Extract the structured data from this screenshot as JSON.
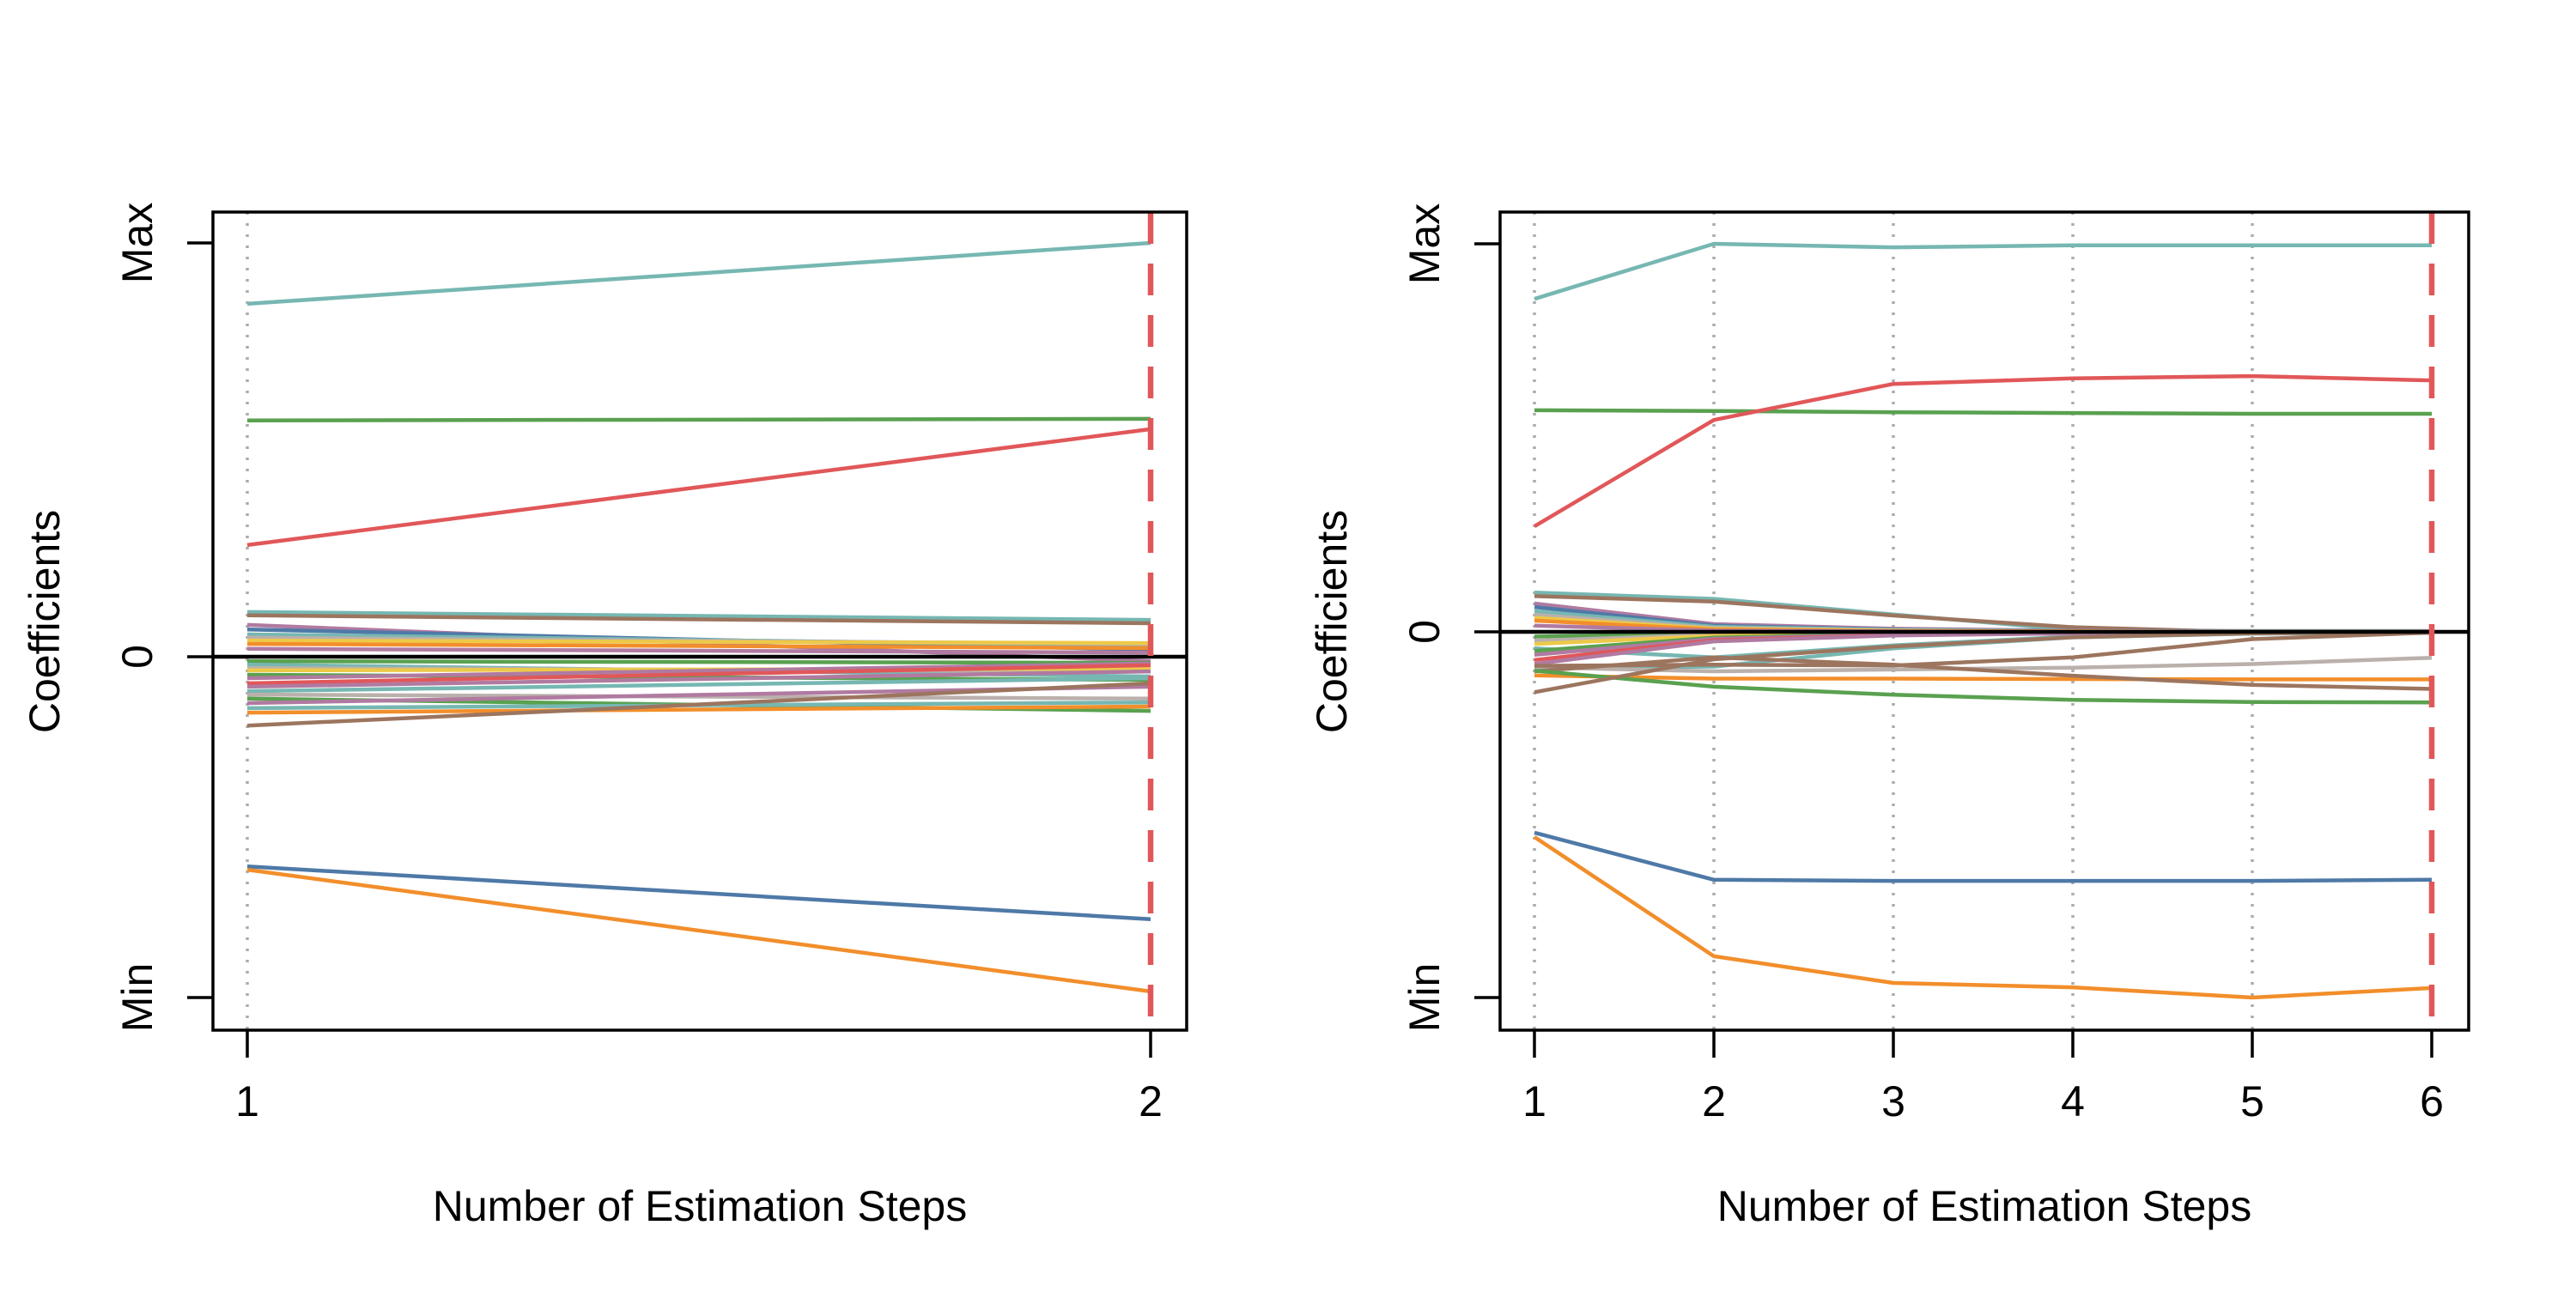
{
  "figure": {
    "ylabel": "Coefficients",
    "xlabel": "Number of Estimation Steps",
    "background": "#ffffff",
    "axis_color": "#000000",
    "zero_line_color": "#000000",
    "grid_color": "#ababab",
    "cutoff_color": "#e15759",
    "palette": {
      "blue": "#4E79A7",
      "orange": "#F28E2B",
      "red": "#E15759",
      "teal": "#76B7B2",
      "green": "#59A14F",
      "yellow": "#EDC949",
      "purple": "#B07AA1",
      "brown": "#9C755F",
      "gray": "#BAB0AC"
    }
  },
  "chart_data": [
    {
      "type": "line",
      "title": "",
      "xlabel": "Number of Estimation Steps",
      "ylabel": "Coefficients",
      "x": [
        1,
        2
      ],
      "x_tick_labels": [
        "1",
        "2"
      ],
      "y_tick_labels": [
        "Max",
        "0",
        "Min"
      ],
      "ylim": [
        "Min",
        "Max"
      ],
      "grid": "dotted vertical at each step",
      "highlighted_step": 2,
      "series": [
        {
          "color": "teal",
          "values": [
            0.108,
            0.089
          ]
        },
        {
          "color": "brown",
          "values": [
            0.1,
            0.081
          ]
        },
        {
          "color": "purple",
          "values": [
            0.077,
            -0.013
          ]
        },
        {
          "color": "blue",
          "values": [
            0.066,
            0.017
          ]
        },
        {
          "color": "teal",
          "values": [
            0.054,
            0.027
          ]
        },
        {
          "color": "gray",
          "values": [
            0.046,
            0.031
          ]
        },
        {
          "color": "yellow",
          "values": [
            0.039,
            0.033
          ]
        },
        {
          "color": "orange",
          "values": [
            0.031,
            0.021
          ]
        },
        {
          "color": "purple",
          "values": [
            0.019,
            0.01
          ]
        },
        {
          "color": "green",
          "values": [
            -0.013,
            -0.018
          ]
        },
        {
          "color": "teal",
          "values": [
            -0.023,
            -0.058
          ]
        },
        {
          "color": "gray",
          "values": [
            -0.033,
            -0.043
          ]
        },
        {
          "color": "yellow",
          "values": [
            -0.04,
            -0.035
          ]
        },
        {
          "color": "green",
          "values": [
            -0.053,
            -0.068
          ]
        },
        {
          "color": "purple",
          "values": [
            -0.063,
            -0.02
          ]
        },
        {
          "color": "red",
          "values": [
            -0.078,
            -0.025
          ]
        },
        {
          "color": "purple",
          "values": [
            -0.088,
            -0.043
          ]
        },
        {
          "color": "teal",
          "values": [
            -0.101,
            -0.063
          ]
        },
        {
          "color": "gray",
          "values": [
            -0.111,
            -0.123
          ]
        },
        {
          "color": "green",
          "values": [
            -0.123,
            -0.159
          ]
        },
        {
          "color": "purple",
          "values": [
            -0.136,
            -0.088
          ]
        },
        {
          "color": "teal",
          "values": [
            -0.151,
            -0.134
          ]
        },
        {
          "color": "orange",
          "values": [
            -0.164,
            -0.146
          ]
        },
        {
          "color": "brown",
          "values": [
            -0.202,
            -0.078
          ]
        },
        {
          "color": "teal",
          "values": [
            0.853,
            1.0
          ]
        },
        {
          "color": "green",
          "values": [
            0.571,
            0.575
          ]
        },
        {
          "color": "red",
          "values": [
            0.27,
            0.55
          ]
        },
        {
          "color": "blue",
          "values": [
            -0.615,
            -0.77
          ]
        },
        {
          "color": "orange",
          "values": [
            -0.625,
            -0.982
          ]
        }
      ]
    },
    {
      "type": "line",
      "title": "",
      "xlabel": "Number of Estimation Steps",
      "ylabel": "Coefficients",
      "x": [
        1,
        2,
        3,
        4,
        5,
        6
      ],
      "x_tick_labels": [
        "1",
        "2",
        "3",
        "4",
        "5",
        "6"
      ],
      "y_tick_labels": [
        "Max",
        "0",
        "Min"
      ],
      "ylim": [
        "Min",
        "Max"
      ],
      "grid": "dotted vertical at each step",
      "highlighted_step": 6,
      "series": [
        {
          "color": "teal",
          "values": [
            0.101,
            0.085,
            0.045,
            0.005,
            0.001,
            0.001
          ]
        },
        {
          "color": "brown",
          "values": [
            0.092,
            0.078,
            0.042,
            0.012,
            -0.001,
            0.0
          ]
        },
        {
          "color": "purple",
          "values": [
            0.073,
            0.02,
            0.008,
            0.003,
            0.002,
            0.002
          ]
        },
        {
          "color": "blue",
          "values": [
            0.064,
            0.016,
            0.006,
            0.002,
            0.002,
            0.002
          ]
        },
        {
          "color": "teal",
          "values": [
            0.053,
            0.013,
            0.005,
            0.002,
            0.001,
            0.001
          ]
        },
        {
          "color": "gray",
          "values": [
            0.044,
            0.01,
            0.004,
            0.001,
            0.001,
            0.001
          ]
        },
        {
          "color": "yellow",
          "values": [
            0.036,
            0.008,
            0.003,
            0.001,
            0.0,
            0.0
          ]
        },
        {
          "color": "orange",
          "values": [
            0.029,
            0.006,
            0.002,
            0.001,
            0.0,
            0.0
          ]
        },
        {
          "color": "purple",
          "values": [
            0.016,
            0.003,
            0.001,
            0.0,
            0.0,
            0.0
          ]
        },
        {
          "color": "green",
          "values": [
            -0.013,
            -0.005,
            -0.002,
            -0.001,
            0.0,
            0.0
          ]
        },
        {
          "color": "gray",
          "values": [
            -0.024,
            -0.008,
            -0.003,
            -0.001,
            -0.001,
            -0.001
          ]
        },
        {
          "color": "yellow",
          "values": [
            -0.033,
            -0.011,
            -0.004,
            -0.002,
            -0.001,
            -0.001
          ]
        },
        {
          "color": "teal",
          "values": [
            -0.045,
            -0.07,
            -0.037,
            -0.013,
            -0.004,
            -0.002
          ]
        },
        {
          "color": "green",
          "values": [
            -0.052,
            -0.016,
            -0.006,
            -0.002,
            -0.001,
            -0.001
          ]
        },
        {
          "color": "purple",
          "values": [
            -0.063,
            -0.019,
            -0.008,
            -0.003,
            -0.002,
            -0.001
          ]
        },
        {
          "color": "red",
          "values": [
            -0.077,
            -0.023,
            -0.009,
            -0.004,
            -0.002,
            -0.002
          ]
        },
        {
          "color": "purple",
          "values": [
            -0.088,
            -0.026,
            -0.01,
            -0.004,
            -0.002,
            -0.002
          ]
        },
        {
          "color": "teal",
          "values": [
            -0.1,
            -0.095,
            -0.045,
            -0.015,
            -0.005,
            -0.003
          ]
        },
        {
          "color": "gray",
          "values": [
            -0.097,
            -0.108,
            -0.103,
            -0.098,
            -0.088,
            -0.071
          ]
        },
        {
          "color": "brown",
          "values": [
            -0.093,
            -0.09,
            -0.092,
            -0.07,
            -0.02,
            -0.002
          ]
        },
        {
          "color": "orange",
          "values": [
            -0.119,
            -0.128,
            -0.128,
            -0.129,
            -0.13,
            -0.13
          ]
        },
        {
          "color": "brown",
          "values": [
            -0.108,
            -0.07,
            -0.09,
            -0.12,
            -0.145,
            -0.156
          ]
        },
        {
          "color": "green",
          "values": [
            -0.106,
            -0.15,
            -0.172,
            -0.186,
            -0.192,
            -0.193
          ]
        },
        {
          "color": "brown",
          "values": [
            -0.165,
            -0.075,
            -0.04,
            -0.015,
            -0.004,
            -0.001
          ]
        },
        {
          "color": "teal",
          "values": [
            0.858,
            1.0,
            0.991,
            0.996,
            0.996,
            0.996
          ]
        },
        {
          "color": "green",
          "values": [
            0.571,
            0.569,
            0.566,
            0.564,
            0.562,
            0.562
          ]
        },
        {
          "color": "red",
          "values": [
            0.272,
            0.546,
            0.639,
            0.653,
            0.659,
            0.648
          ]
        },
        {
          "color": "blue",
          "values": [
            -0.549,
            -0.678,
            -0.681,
            -0.681,
            -0.681,
            -0.678
          ]
        },
        {
          "color": "orange",
          "values": [
            -0.561,
            -0.887,
            -0.96,
            -0.972,
            -1.0,
            -0.974
          ]
        }
      ]
    }
  ]
}
